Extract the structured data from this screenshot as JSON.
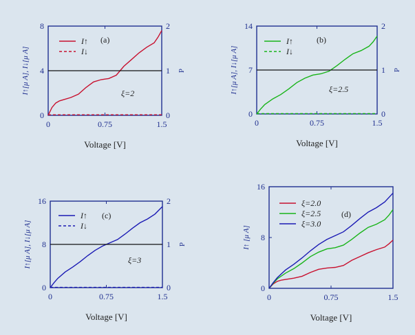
{
  "figure": {
    "background": "#dbe5ee",
    "axis_color": "#1f2f8f",
    "label_color": "#1f2f8f",
    "text_color": "#222222"
  },
  "chart_data": [
    {
      "id": "a",
      "type": "line",
      "panel_label": "(a)",
      "annotation": "ξ=2",
      "xlabel": "Voltage [V]",
      "ylabel": "I↑[μ A], I↓[μ A]",
      "y2label": "P",
      "xlim": [
        0,
        1.5
      ],
      "ylim": [
        0,
        8
      ],
      "y2lim": [
        0,
        2
      ],
      "xticks": [
        0,
        0.75,
        1.5
      ],
      "xtick_labels": [
        "0",
        "0.75",
        "1.5"
      ],
      "yticks": [
        0,
        4,
        8
      ],
      "ytick_labels": [
        "0",
        "4",
        "8"
      ],
      "y2ticks": [
        0,
        1,
        2
      ],
      "y2tick_labels": [
        "0",
        "1",
        "2"
      ],
      "legend_position": "top-left",
      "series": [
        {
          "name": "I↑",
          "color": "#c8102e",
          "dash": "solid",
          "legend": true,
          "x": [
            0,
            0.05,
            0.1,
            0.15,
            0.2,
            0.3,
            0.4,
            0.5,
            0.6,
            0.7,
            0.75,
            0.8,
            0.9,
            1.0,
            1.1,
            1.2,
            1.3,
            1.4,
            1.45,
            1.5
          ],
          "y": [
            0,
            0.7,
            1.1,
            1.3,
            1.4,
            1.6,
            1.9,
            2.5,
            3.0,
            3.2,
            3.25,
            3.3,
            3.6,
            4.4,
            5.0,
            5.6,
            6.1,
            6.5,
            7.0,
            7.6
          ]
        },
        {
          "name": "I↓",
          "color": "#c8102e",
          "dash": "dashed",
          "legend": true,
          "x": [
            0,
            1.5
          ],
          "y": [
            0.05,
            0.05
          ]
        },
        {
          "name": "",
          "color": "#111111",
          "dash": "solid",
          "legend": false,
          "x": [
            0,
            1.5
          ],
          "y": [
            4,
            4
          ]
        }
      ]
    },
    {
      "id": "b",
      "type": "line",
      "panel_label": "(b)",
      "annotation": "ξ=2.5",
      "xlabel": "Voltage [V]",
      "ylabel": "I↑[μ A], I↓[μ A]",
      "y2label": "P",
      "xlim": [
        0,
        1.5
      ],
      "ylim": [
        0,
        14
      ],
      "y2lim": [
        0,
        2
      ],
      "xticks": [
        0,
        0.75,
        1.5
      ],
      "xtick_labels": [
        "0",
        "0.75",
        "1.5"
      ],
      "yticks": [
        0,
        7,
        14
      ],
      "ytick_labels": [
        "0",
        "7",
        "14"
      ],
      "y2ticks": [
        0,
        1,
        2
      ],
      "y2tick_labels": [
        "0",
        "1",
        "2"
      ],
      "legend_position": "top-left",
      "series": [
        {
          "name": "I↑",
          "color": "#18b418",
          "dash": "solid",
          "legend": true,
          "x": [
            0,
            0.05,
            0.1,
            0.2,
            0.3,
            0.4,
            0.5,
            0.6,
            0.7,
            0.8,
            0.9,
            1.0,
            1.1,
            1.2,
            1.3,
            1.4,
            1.45,
            1.5
          ],
          "y": [
            0,
            0.8,
            1.5,
            2.4,
            3.1,
            4.0,
            5.0,
            5.7,
            6.2,
            6.4,
            6.8,
            7.7,
            8.7,
            9.6,
            10.1,
            10.8,
            11.5,
            12.4
          ]
        },
        {
          "name": "I↓",
          "color": "#18b418",
          "dash": "dashed",
          "legend": true,
          "x": [
            0,
            1.5
          ],
          "y": [
            0.05,
            0.05
          ]
        },
        {
          "name": "",
          "color": "#111111",
          "dash": "solid",
          "legend": false,
          "x": [
            0,
            1.5
          ],
          "y": [
            7,
            7
          ]
        }
      ]
    },
    {
      "id": "c",
      "type": "line",
      "panel_label": "(c)",
      "annotation": "ξ=3",
      "xlabel": "Voltage [V]",
      "ylabel": "I↑[μ A], I↓[μ A]",
      "y2label": "P",
      "xlim": [
        0,
        1.5
      ],
      "ylim": [
        0,
        16
      ],
      "y2lim": [
        0,
        2
      ],
      "xticks": [
        0,
        0.75,
        1.5
      ],
      "xtick_labels": [
        "0",
        "0.75",
        "1.5"
      ],
      "yticks": [
        0,
        8,
        16
      ],
      "ytick_labels": [
        "0",
        "8",
        "16"
      ],
      "y2ticks": [
        0,
        1,
        2
      ],
      "y2tick_labels": [
        "0",
        "1",
        "2"
      ],
      "legend_position": "top-left",
      "series": [
        {
          "name": "I↑",
          "color": "#1a1ab4",
          "dash": "solid",
          "legend": true,
          "x": [
            0,
            0.05,
            0.1,
            0.2,
            0.3,
            0.4,
            0.5,
            0.6,
            0.7,
            0.8,
            0.9,
            1.0,
            1.1,
            1.2,
            1.3,
            1.4,
            1.5
          ],
          "y": [
            0,
            0.9,
            1.7,
            2.9,
            3.8,
            4.8,
            5.9,
            6.9,
            7.7,
            8.3,
            8.9,
            9.9,
            11.0,
            12.0,
            12.7,
            13.6,
            15.0
          ]
        },
        {
          "name": "I↓",
          "color": "#1a1ab4",
          "dash": "dashed",
          "legend": true,
          "x": [
            0,
            1.5
          ],
          "y": [
            0.05,
            0.05
          ]
        },
        {
          "name": "",
          "color": "#111111",
          "dash": "solid",
          "legend": false,
          "x": [
            0,
            1.5
          ],
          "y": [
            8,
            8
          ]
        }
      ]
    },
    {
      "id": "d",
      "type": "line",
      "panel_label": "(d)",
      "annotation": "",
      "xlabel": "Voltage [V]",
      "ylabel": "I↑ [μ A]",
      "y2label": "",
      "xlim": [
        0,
        1.5
      ],
      "ylim": [
        0,
        16
      ],
      "xticks": [
        0,
        0.75,
        1.5
      ],
      "xtick_labels": [
        "0",
        "0.75",
        "1.5"
      ],
      "yticks": [
        0,
        8,
        16
      ],
      "ytick_labels": [
        "0",
        "8",
        "16"
      ],
      "legend_position": "top-left",
      "series": [
        {
          "name": "ξ=2.0",
          "color": "#c8102e",
          "dash": "solid",
          "legend": true,
          "x": [
            0,
            0.05,
            0.1,
            0.15,
            0.2,
            0.3,
            0.4,
            0.5,
            0.6,
            0.7,
            0.75,
            0.8,
            0.9,
            1.0,
            1.1,
            1.2,
            1.3,
            1.4,
            1.45,
            1.5
          ],
          "y": [
            0,
            0.7,
            1.1,
            1.3,
            1.4,
            1.6,
            1.9,
            2.5,
            3.0,
            3.2,
            3.25,
            3.3,
            3.6,
            4.4,
            5.0,
            5.6,
            6.1,
            6.5,
            7.0,
            7.6
          ]
        },
        {
          "name": "ξ=2.5",
          "color": "#18b418",
          "dash": "solid",
          "legend": true,
          "x": [
            0,
            0.05,
            0.1,
            0.2,
            0.3,
            0.4,
            0.5,
            0.6,
            0.7,
            0.8,
            0.9,
            1.0,
            1.1,
            1.2,
            1.3,
            1.4,
            1.45,
            1.5
          ],
          "y": [
            0,
            0.8,
            1.5,
            2.4,
            3.1,
            4.0,
            5.0,
            5.7,
            6.2,
            6.4,
            6.8,
            7.7,
            8.7,
            9.6,
            10.1,
            10.8,
            11.5,
            12.4
          ]
        },
        {
          "name": "ξ=3.0",
          "color": "#1a1ab4",
          "dash": "solid",
          "legend": true,
          "x": [
            0,
            0.05,
            0.1,
            0.2,
            0.3,
            0.4,
            0.5,
            0.6,
            0.7,
            0.8,
            0.9,
            1.0,
            1.1,
            1.2,
            1.3,
            1.4,
            1.5
          ],
          "y": [
            0,
            0.9,
            1.7,
            2.9,
            3.8,
            4.8,
            5.9,
            6.9,
            7.7,
            8.3,
            8.9,
            9.9,
            11.0,
            12.0,
            12.7,
            13.6,
            15.0
          ]
        }
      ]
    }
  ]
}
